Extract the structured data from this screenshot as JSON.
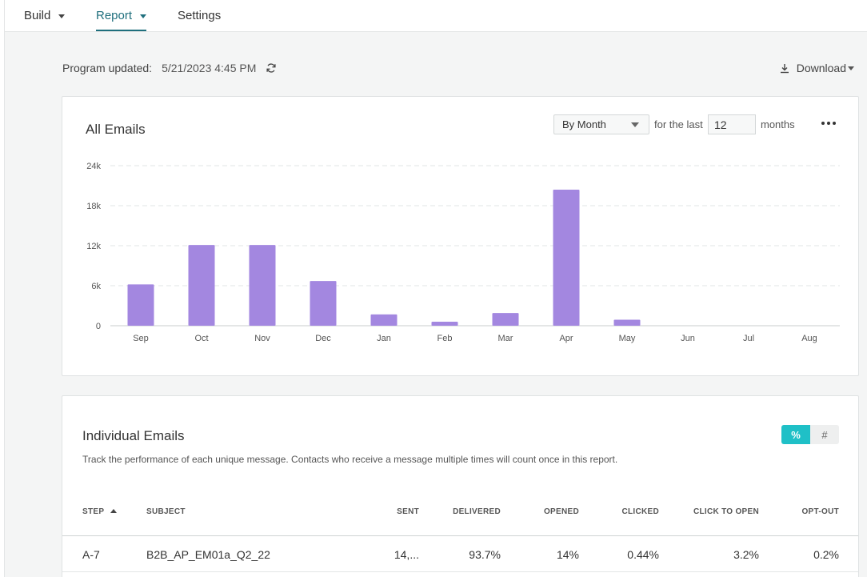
{
  "nav": {
    "tabs": [
      {
        "label": "Build",
        "has_dropdown": true,
        "active": false
      },
      {
        "label": "Report",
        "has_dropdown": true,
        "active": true
      },
      {
        "label": "Settings",
        "has_dropdown": false,
        "active": false
      }
    ]
  },
  "program": {
    "updated_label": "Program updated:",
    "updated_value": "5/21/2023 4:45 PM",
    "refresh_icon": "refresh-icon"
  },
  "download": {
    "label": "Download",
    "icon": "download-icon"
  },
  "all_emails": {
    "title": "All Emails",
    "period_select": "By Month",
    "for_the_last": "for the last",
    "count_value": "12",
    "unit": "months",
    "more_icon": "more-horizontal-icon"
  },
  "chart_data": {
    "type": "bar",
    "categories": [
      "Sep",
      "Oct",
      "Nov",
      "Dec",
      "Jan",
      "Feb",
      "Mar",
      "Apr",
      "May",
      "Jun",
      "Jul",
      "Aug"
    ],
    "values": [
      6200,
      12100,
      12100,
      6700,
      1700,
      600,
      1900,
      20400,
      900,
      0,
      0,
      0
    ],
    "ylim": [
      0,
      24000
    ],
    "yticks": [
      0,
      6000,
      12000,
      18000,
      24000
    ],
    "ytick_labels": [
      "0",
      "6k",
      "12k",
      "18k",
      "24k"
    ],
    "grid": true,
    "bar_color": "#a387e0"
  },
  "individual": {
    "title": "Individual Emails",
    "subtitle": "Track the performance of each unique message. Contacts who receive a message multiple times will count once in this report.",
    "toggle": {
      "percent": "%",
      "number": "#",
      "selected": "percent"
    },
    "columns": [
      "STEP",
      "SUBJECT",
      "SENT",
      "DELIVERED",
      "OPENED",
      "CLICKED",
      "CLICK TO OPEN",
      "OPT-OUT"
    ],
    "rows": [
      {
        "step": "A-7",
        "subject": "B2B_AP_EM01a_Q2_22",
        "sent": "14,...",
        "delivered": "93.7%",
        "opened": "14%",
        "clicked": "0.44%",
        "click_to_open": "3.2%",
        "opt_out": "0.2%"
      }
    ]
  },
  "colors": {
    "accent": "#1f6f7d",
    "toggle_on": "#1fc0c7",
    "bar": "#a387e0"
  }
}
